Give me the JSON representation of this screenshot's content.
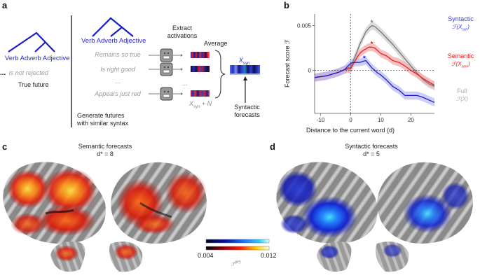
{
  "panel_a": {
    "letter": "a",
    "tree_labels": [
      "Verb",
      "Adverb",
      "Adjective"
    ],
    "true_prefix": "...",
    "true_continuation": "is not rejected",
    "true_future_label": "True future",
    "generated_futures": [
      "Remains so true",
      "Is right good",
      "...",
      "Appears just red"
    ],
    "generate_label_line1": "Generate futures",
    "generate_label_line2": "with similar syntax",
    "extract_label_line1": "Extract",
    "extract_label_line2": "activations",
    "average_label": "Average",
    "dots": "...",
    "xsyn_label": "X",
    "xsyn_sub": "syn",
    "xsyn_noise_label": "X",
    "xsyn_noise_sub": "syn",
    "xsyn_noise_suffix": " + N",
    "syntactic_forecasts_line1": "Syntactic",
    "syntactic_forecasts_line2": "forecasts",
    "colors": {
      "tree": "#1a1ac8",
      "gray_text": "#9a9a9a"
    }
  },
  "panel_b": {
    "letter": "b",
    "legend": [
      {
        "line1": "Syntactic",
        "line2": "ℱ(X",
        "sub": "syn",
        "close": ")",
        "color": "#3a3ae0"
      },
      {
        "line1": "Semantic",
        "line2": "ℱ(X",
        "sub": "sem",
        "close": ")",
        "color": "#e82020"
      },
      {
        "line1": "Full",
        "line2": "ℱ(X)",
        "sub": "",
        "close": "",
        "color": "#aaaaaa"
      }
    ]
  },
  "panel_c": {
    "letter": "c",
    "title": "Semantic forecasts",
    "subtitle": "d* = 8",
    "color": "#e8401a"
  },
  "panel_d": {
    "letter": "d",
    "title": "Syntactic forecasts",
    "subtitle": "d* = 5",
    "color": "#1a2ae0"
  },
  "colorbar": {
    "min_label": "0.004",
    "max_label": "0.012",
    "title": "ℱ",
    "title_sup": "(d*)"
  },
  "chart_data": {
    "type": "line",
    "title": "",
    "xlabel": "Distance to the current word (d)",
    "ylabel": "Forecast score ℱ",
    "xlim": [
      -12,
      29
    ],
    "ylim": [
      -0.0048,
      0.0063
    ],
    "xticks": [
      -10,
      0,
      10,
      20
    ],
    "xtick_labels": [
      "-10",
      "0",
      "10",
      "20"
    ],
    "yticks": [
      0,
      0.005
    ],
    "ytick_labels": [
      "0",
      "0.005"
    ],
    "reference_lines": {
      "x": 0,
      "y": 0
    },
    "x": [
      -12,
      -10,
      -8,
      -6,
      -4,
      -2,
      0,
      1,
      2,
      3,
      4,
      5,
      6,
      7,
      8,
      9,
      10,
      12,
      14,
      16,
      18,
      20,
      22,
      24,
      26,
      28,
      29
    ],
    "series": [
      {
        "name": "Full",
        "color": "#777777",
        "band_color": "#cccccc",
        "values": [
          -0.0008,
          -0.0007,
          -0.0006,
          -0.0004,
          -0.0002,
          0.0001,
          0.0004,
          0.0012,
          0.002,
          0.0029,
          0.0036,
          0.0043,
          0.0047,
          0.005,
          0.0049,
          0.0046,
          0.0043,
          0.0036,
          0.0029,
          0.0021,
          0.0013,
          0.0005,
          -0.0003,
          -0.001,
          -0.0015,
          -0.0018,
          -0.0021
        ],
        "peak": {
          "x": 7,
          "y": 0.0054,
          "marker": "*"
        }
      },
      {
        "name": "Semantic",
        "color": "#e82020",
        "band_color": "#f4a6a6",
        "values": [
          -0.0008,
          -0.0007,
          -0.0006,
          -0.0004,
          -0.0002,
          0.0001,
          0.0002,
          0.0008,
          0.0014,
          0.0019,
          0.0022,
          0.0024,
          0.0026,
          0.0026,
          0.0025,
          0.0022,
          0.0019,
          0.0016,
          0.0011,
          0.0009,
          0.0005,
          0.0,
          -0.0004,
          -0.0009,
          -0.0013,
          -0.0017,
          -0.0021
        ],
        "peak": {
          "x": 7,
          "y": 0.003,
          "marker": "*"
        }
      },
      {
        "name": "Syntactic",
        "color": "#1a1ad0",
        "band_color": "#b8b8f4",
        "values": [
          -0.0008,
          -0.0007,
          -0.0006,
          -0.0004,
          -0.0002,
          0.0001,
          0.0008,
          0.0009,
          0.0009,
          0.0009,
          0.001,
          0.0011,
          0.0007,
          0.0003,
          0.0,
          -0.0003,
          -0.0005,
          -0.0011,
          -0.0018,
          -0.0022,
          -0.0028,
          -0.0028,
          -0.0028,
          -0.003,
          -0.0033,
          -0.0036,
          -0.0037
        ],
        "peak": {
          "x": 4.5,
          "y": 0.0014,
          "marker": "*"
        }
      }
    ]
  }
}
